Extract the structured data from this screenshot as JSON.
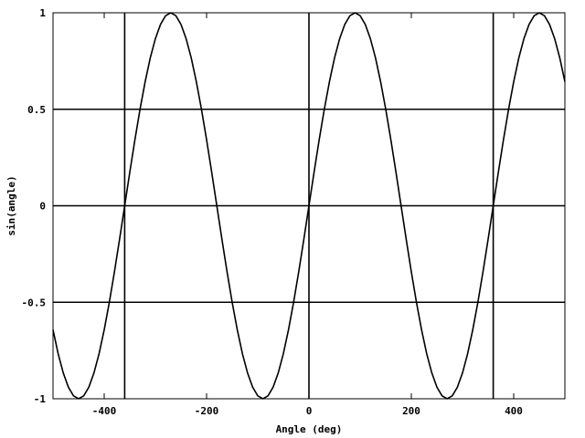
{
  "chart_data": {
    "type": "line",
    "title": "",
    "xlabel": "Angle (deg)",
    "ylabel": "sin(angle)",
    "xlim": [
      -500,
      500
    ],
    "ylim": [
      -1,
      1
    ],
    "x_ticks": [
      -400,
      -200,
      0,
      200,
      400
    ],
    "x_tick_labels": [
      "-400",
      "-200",
      "0",
      "200",
      "400"
    ],
    "y_ticks": [
      -1,
      -0.5,
      0,
      0.5,
      1
    ],
    "y_tick_labels": [
      "-1",
      "-0.5",
      "0",
      "0.5",
      "1"
    ],
    "gridlines_x": [
      -360,
      0,
      360
    ],
    "gridlines_y": [
      -0.5,
      0,
      0.5
    ],
    "grid": true,
    "legend": "none",
    "series": [
      {
        "function": "sin(angle)",
        "x_start": -500,
        "x_end": 500,
        "x_step": 10,
        "color": "#000000"
      }
    ]
  }
}
